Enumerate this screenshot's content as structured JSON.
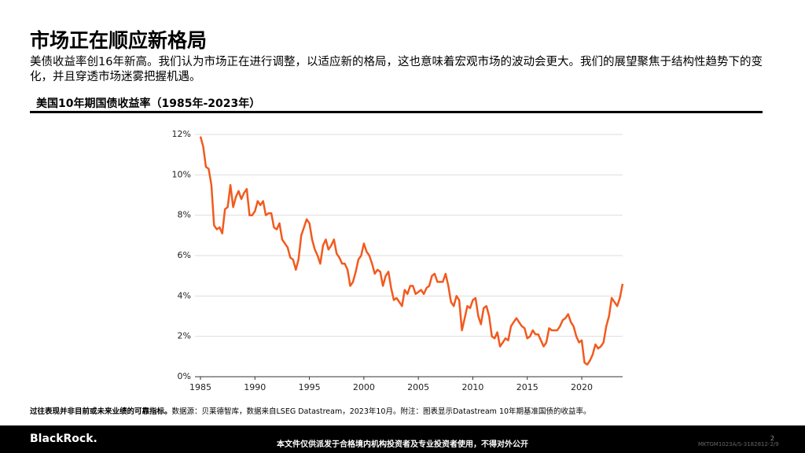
{
  "header": {
    "title": "市场正在顺应新格局",
    "subtitle": "美债收益率创16年新高。我们认为市场正在进行调整，以适应新的格局，这也意味着宏观市场的波动会更大。我们的展望聚焦于结构性趋势下的变化，并且穿透市场迷雾把握机遇。"
  },
  "chart_data": {
    "type": "line",
    "title": "美国10年期国债收益率（1985年-2023年）",
    "color": "#f25a1e",
    "x": [
      1985.0,
      1985.25,
      1985.5,
      1985.75,
      1986.0,
      1986.25,
      1986.5,
      1986.75,
      1987.0,
      1987.25,
      1987.5,
      1987.75,
      1988.0,
      1988.25,
      1988.5,
      1988.75,
      1989.0,
      1989.25,
      1989.5,
      1989.75,
      1990.0,
      1990.25,
      1990.5,
      1990.75,
      1991.0,
      1991.25,
      1991.5,
      1991.75,
      1992.0,
      1992.25,
      1992.5,
      1992.75,
      1993.0,
      1993.25,
      1993.5,
      1993.75,
      1994.0,
      1994.25,
      1994.5,
      1994.75,
      1995.0,
      1995.25,
      1995.5,
      1995.75,
      1996.0,
      1996.25,
      1996.5,
      1996.75,
      1997.0,
      1997.25,
      1997.5,
      1997.75,
      1998.0,
      1998.25,
      1998.5,
      1998.75,
      1999.0,
      1999.25,
      1999.5,
      1999.75,
      2000.0,
      2000.25,
      2000.5,
      2000.75,
      2001.0,
      2001.25,
      2001.5,
      2001.75,
      2002.0,
      2002.25,
      2002.5,
      2002.75,
      2003.0,
      2003.25,
      2003.5,
      2003.75,
      2004.0,
      2004.25,
      2004.5,
      2004.75,
      2005.0,
      2005.25,
      2005.5,
      2005.75,
      2006.0,
      2006.25,
      2006.5,
      2006.75,
      2007.0,
      2007.25,
      2007.5,
      2007.75,
      2008.0,
      2008.25,
      2008.5,
      2008.75,
      2009.0,
      2009.25,
      2009.5,
      2009.75,
      2010.0,
      2010.25,
      2010.5,
      2010.75,
      2011.0,
      2011.25,
      2011.5,
      2011.75,
      2012.0,
      2012.25,
      2012.5,
      2012.75,
      2013.0,
      2013.25,
      2013.5,
      2013.75,
      2014.0,
      2014.25,
      2014.5,
      2014.75,
      2015.0,
      2015.25,
      2015.5,
      2015.75,
      2016.0,
      2016.25,
      2016.5,
      2016.75,
      2017.0,
      2017.25,
      2017.5,
      2017.75,
      2018.0,
      2018.25,
      2018.5,
      2018.75,
      2019.0,
      2019.25,
      2019.5,
      2019.75,
      2020.0,
      2020.25,
      2020.5,
      2020.75,
      2021.0,
      2021.25,
      2021.5,
      2021.75,
      2022.0,
      2022.25,
      2022.5,
      2022.75,
      2023.0,
      2023.25,
      2023.5,
      2023.75
    ],
    "values": [
      11.9,
      11.4,
      10.4,
      10.3,
      9.5,
      7.5,
      7.3,
      7.4,
      7.1,
      8.3,
      8.4,
      9.5,
      8.4,
      8.9,
      9.2,
      8.8,
      9.1,
      9.3,
      8.0,
      8.0,
      8.2,
      8.7,
      8.5,
      8.7,
      8.0,
      8.1,
      8.1,
      7.4,
      7.3,
      7.6,
      6.8,
      6.6,
      6.4,
      5.9,
      5.8,
      5.3,
      5.8,
      7.0,
      7.4,
      7.8,
      7.6,
      6.8,
      6.3,
      6.0,
      5.6,
      6.5,
      6.8,
      6.3,
      6.5,
      6.8,
      6.1,
      5.9,
      5.6,
      5.6,
      5.3,
      4.5,
      4.7,
      5.2,
      5.8,
      6.0,
      6.6,
      6.2,
      6.0,
      5.6,
      5.1,
      5.3,
      5.2,
      4.5,
      5.0,
      5.2,
      4.4,
      3.8,
      3.9,
      3.7,
      3.5,
      4.3,
      4.1,
      4.5,
      4.5,
      4.1,
      4.2,
      4.3,
      4.1,
      4.4,
      4.5,
      5.0,
      5.1,
      4.7,
      4.7,
      4.7,
      5.1,
      4.5,
      3.7,
      3.5,
      4.0,
      3.8,
      2.3,
      2.9,
      3.5,
      3.4,
      3.8,
      3.9,
      3.0,
      2.6,
      3.4,
      3.5,
      3.0,
      2.0,
      1.9,
      2.2,
      1.5,
      1.7,
      1.9,
      1.8,
      2.5,
      2.7,
      2.9,
      2.7,
      2.5,
      2.4,
      1.9,
      2.0,
      2.3,
      2.1,
      2.1,
      1.8,
      1.5,
      1.7,
      2.4,
      2.3,
      2.3,
      2.3,
      2.5,
      2.8,
      2.9,
      3.1,
      2.7,
      2.5,
      2.0,
      1.7,
      1.8,
      0.7,
      0.6,
      0.8,
      1.1,
      1.6,
      1.4,
      1.5,
      1.7,
      2.5,
      3.0,
      3.9,
      3.7,
      3.5,
      3.9,
      4.6
    ],
    "xlim": [
      1985,
      2023.75
    ],
    "xticks": [
      1985,
      1990,
      1995,
      2000,
      2005,
      2010,
      2015,
      2020
    ],
    "ylim": [
      0,
      12
    ],
    "yticks": [
      {
        "value": 0,
        "label": "0%"
      },
      {
        "value": 2,
        "label": "2%"
      },
      {
        "value": 4,
        "label": "4%"
      },
      {
        "value": 6,
        "label": "6%"
      },
      {
        "value": 8,
        "label": "8%"
      },
      {
        "value": 10,
        "label": "10%"
      },
      {
        "value": 12,
        "label": "12%"
      }
    ],
    "grid": true
  },
  "footnote": {
    "bold": "过往表现并非目前或未来业绩的可靠指标。",
    "text": "数据源：贝莱德智库，数据来自LSEG Datastream，2023年10月。附注：图表显示Datastream 10年期基准国债的收益率。"
  },
  "footer": {
    "brand": "BlackRock.",
    "notice": "本文件仅供派发于合格境内机构投资者及专业投资者使用，不得对外公开",
    "code": "MKTGM1023A/S-3182812-2/9",
    "page": "2"
  }
}
